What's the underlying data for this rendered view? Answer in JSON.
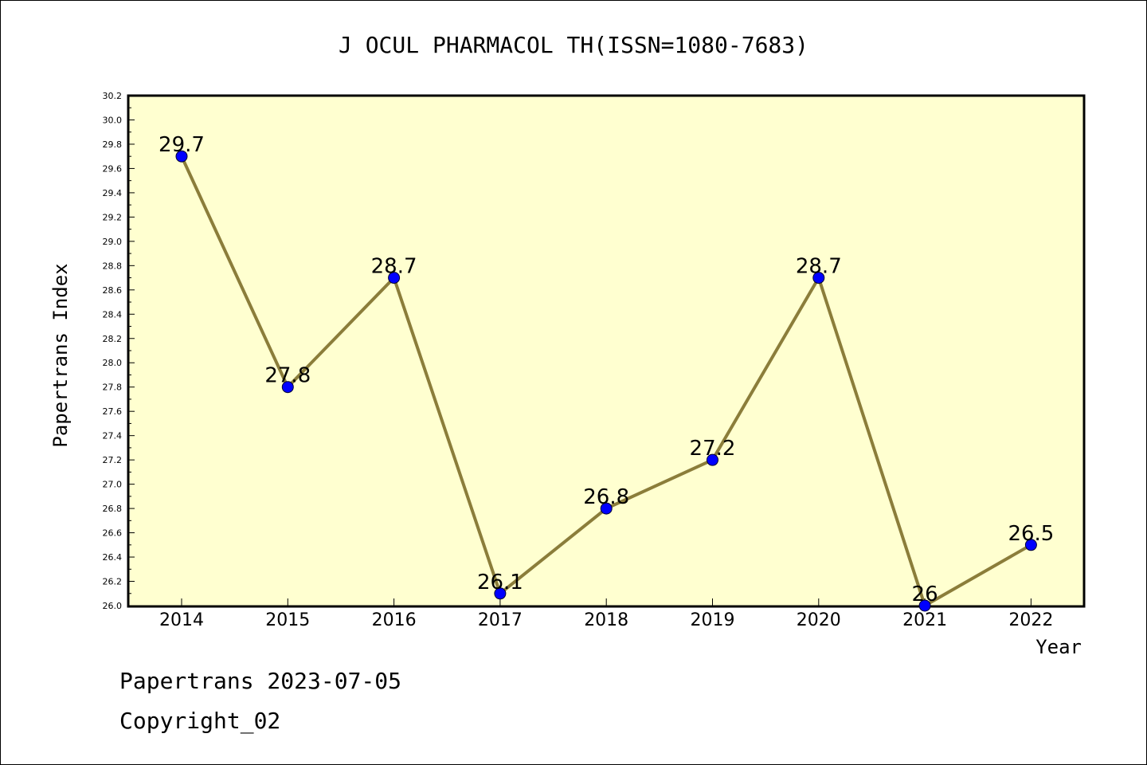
{
  "chart_data": {
    "type": "line",
    "title": "J OCUL PHARMACOL TH(ISSN=1080-7683)",
    "xlabel": "Year",
    "ylabel": "Papertrans Index",
    "categories": [
      "2014",
      "2015",
      "2016",
      "2017",
      "2018",
      "2019",
      "2020",
      "2021",
      "2022"
    ],
    "values": [
      29.7,
      27.8,
      28.7,
      26.1,
      26.8,
      27.2,
      28.7,
      26.0,
      26.5
    ],
    "data_labels": [
      "29.7",
      "27.8",
      "28.7",
      "26.1",
      "26.8",
      "27.2",
      "28.7",
      "26",
      "26.5"
    ],
    "ylim": [
      26.0,
      30.2
    ],
    "yticks": [
      "26.0",
      "26.2",
      "26.4",
      "26.6",
      "26.8",
      "27.0",
      "27.2",
      "27.4",
      "27.6",
      "27.8",
      "28.0",
      "28.2",
      "28.4",
      "28.6",
      "28.8",
      "29.0",
      "29.2",
      "29.4",
      "29.6",
      "29.8",
      "30.0",
      "30.2"
    ],
    "grid": false,
    "colors": {
      "plot_background": "#ffffd0",
      "line": "#8b7d3a",
      "marker": "#0000ff"
    }
  },
  "footer": {
    "line1": "Papertrans 2023-07-05",
    "line2": "Copyright_02"
  }
}
